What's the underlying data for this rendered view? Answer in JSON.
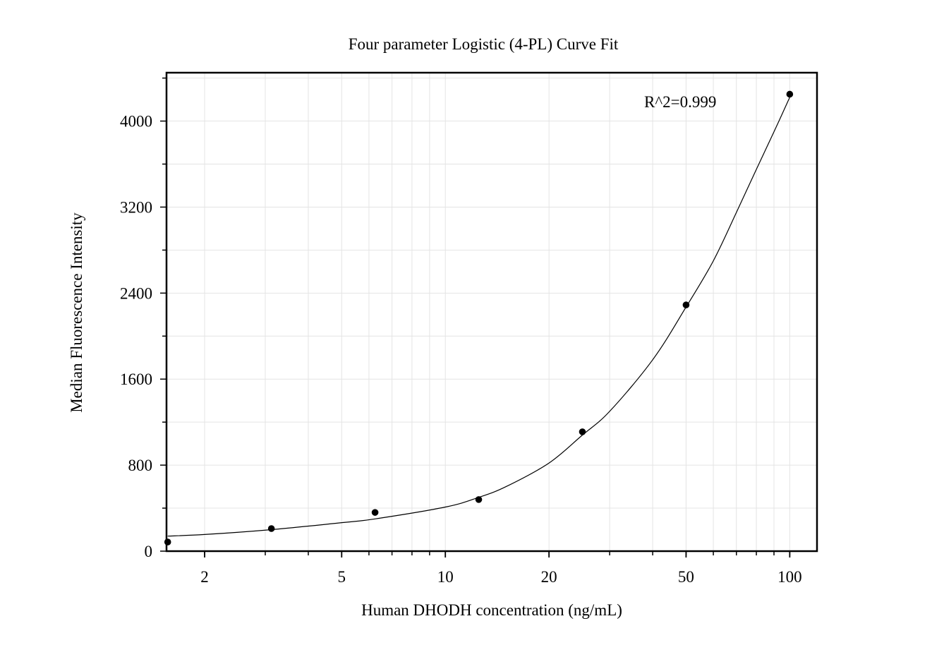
{
  "chart_data": {
    "type": "scatter",
    "title": "Four parameter Logistic (4-PL) Curve Fit",
    "xlabel": "Human DHODH concentration (ng/mL)",
    "ylabel": "Median Fluorescence Intensity",
    "annotation": "R^2=0.999",
    "x_scale": "log",
    "xlim": [
      1.55,
      120
    ],
    "ylim": [
      0,
      4450
    ],
    "x_ticks": [
      2,
      5,
      10,
      20,
      50,
      100
    ],
    "x_tick_labels": [
      "2",
      "5",
      "10",
      "20",
      "50",
      "100"
    ],
    "y_ticks": [
      0,
      800,
      1600,
      2400,
      3200,
      4000
    ],
    "y_tick_labels": [
      "0",
      "800",
      "1600",
      "2400",
      "3200",
      "4000"
    ],
    "grid": true,
    "points": [
      {
        "x": 1.5625,
        "y": 85
      },
      {
        "x": 3.125,
        "y": 210
      },
      {
        "x": 6.25,
        "y": 360
      },
      {
        "x": 12.5,
        "y": 480
      },
      {
        "x": 25,
        "y": 1110
      },
      {
        "x": 50,
        "y": 2290
      },
      {
        "x": 100,
        "y": 4250
      }
    ],
    "fit_curve": [
      {
        "x": 1.5625,
        "y": 140
      },
      {
        "x": 2,
        "y": 155
      },
      {
        "x": 3.125,
        "y": 200
      },
      {
        "x": 5,
        "y": 265
      },
      {
        "x": 6.25,
        "y": 300
      },
      {
        "x": 10,
        "y": 410
      },
      {
        "x": 12.5,
        "y": 500
      },
      {
        "x": 15,
        "y": 600
      },
      {
        "x": 20,
        "y": 820
      },
      {
        "x": 25,
        "y": 1080
      },
      {
        "x": 30,
        "y": 1300
      },
      {
        "x": 40,
        "y": 1780
      },
      {
        "x": 50,
        "y": 2270
      },
      {
        "x": 60,
        "y": 2700
      },
      {
        "x": 70,
        "y": 3150
      },
      {
        "x": 80,
        "y": 3550
      },
      {
        "x": 90,
        "y": 3900
      },
      {
        "x": 100,
        "y": 4220
      }
    ],
    "colors": {
      "points": "#000000",
      "curve": "#000000",
      "grid": "#e4e4e4",
      "axes": "#000000"
    }
  }
}
